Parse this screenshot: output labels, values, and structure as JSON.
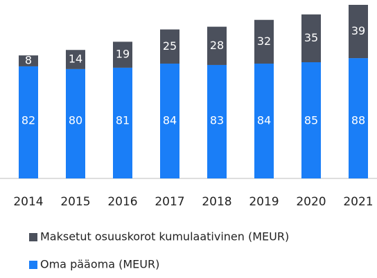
{
  "chart_data": {
    "type": "stacked-bar",
    "categories": [
      "2014",
      "2015",
      "2016",
      "2017",
      "2018",
      "2019",
      "2020",
      "2021"
    ],
    "series": [
      {
        "name": "Oma pääoma (MEUR)",
        "color": "#1a7ef7",
        "values": [
          82,
          80,
          81,
          84,
          83,
          84,
          85,
          88
        ]
      },
      {
        "name": "Maksetut osuuskorot kumulaativinen (MEUR)",
        "color": "#4b505c",
        "values": [
          8,
          14,
          19,
          25,
          28,
          32,
          35,
          39
        ]
      }
    ]
  }
}
